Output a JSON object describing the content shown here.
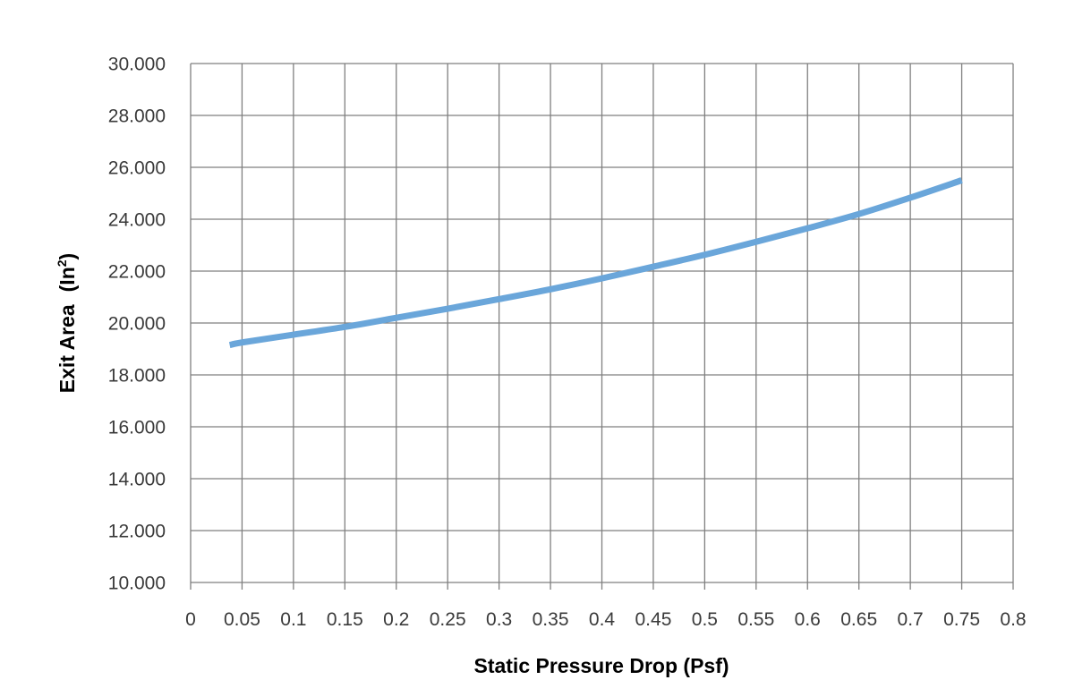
{
  "chart_data": {
    "type": "line",
    "xlabel": "Static Pressure Drop (Psf)",
    "ylabel": "Exit Area",
    "ylabel_unit": "(In",
    "ylabel_sup": "2",
    "ylabel_close": ")",
    "xlim": [
      0,
      0.8
    ],
    "ylim": [
      10,
      30
    ],
    "grid": true,
    "legend": "none",
    "x_ticks": [
      "0",
      "0.05",
      "0.1",
      "0.15",
      "0.2",
      "0.25",
      "0.3",
      "0.35",
      "0.4",
      "0.45",
      "0.5",
      "0.55",
      "0.6",
      "0.65",
      "0.7",
      "0.75",
      "0.8"
    ],
    "y_ticks": [
      "30.000",
      "28.000",
      "26.000",
      "24.000",
      "22.000",
      "20.000",
      "18.000",
      "16.000",
      "14.000",
      "12.000",
      "10.000"
    ],
    "series": [
      {
        "color": "#6aa6da",
        "x": [
          0.038,
          0.05,
          0.1,
          0.15,
          0.2,
          0.25,
          0.3,
          0.35,
          0.4,
          0.45,
          0.5,
          0.55,
          0.6,
          0.65,
          0.7,
          0.75
        ],
        "y": [
          19.15,
          19.25,
          19.55,
          19.85,
          20.2,
          20.55,
          20.92,
          21.3,
          21.72,
          22.17,
          22.63,
          23.13,
          23.65,
          24.2,
          24.83,
          25.5
        ]
      }
    ]
  }
}
